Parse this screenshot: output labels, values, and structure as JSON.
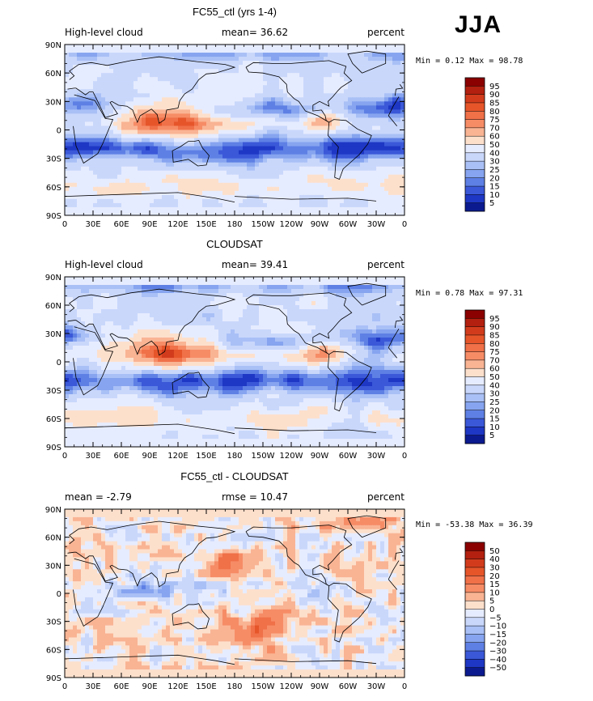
{
  "season_label": "JJA",
  "chart_data": [
    {
      "type": "heatmap",
      "title": "FC55_ctl (yrs 1-4)",
      "left_label": "High-level cloud",
      "center_label": "mean=  36.62",
      "right_label": "percent",
      "stats": "Min =   0.12 Max =  98.78",
      "min": 0.12,
      "max": 98.78,
      "mean": 36.62,
      "x_ticks": [
        "0",
        "30E",
        "60E",
        "90E",
        "120E",
        "150E",
        "180",
        "150W",
        "120W",
        "90W",
        "60W",
        "30W",
        "0"
      ],
      "y_ticks": [
        "90N",
        "60N",
        "30N",
        "0",
        "30S",
        "60S",
        "90S"
      ],
      "xlim": [
        0,
        360
      ],
      "ylim": [
        -90,
        90
      ],
      "colorbar_levels": [
        "95",
        "90",
        "85",
        "80",
        "75",
        "70",
        "60",
        "50",
        "40",
        "30",
        "25",
        "20",
        "15",
        "10",
        "5"
      ],
      "colorbar_colors": [
        "#8b0000",
        "#b3200f",
        "#d23c1c",
        "#e6552a",
        "#f07048",
        "#f68c66",
        "#f9b494",
        "#fde0cc",
        "#e6ecff",
        "#c9d7fb",
        "#a9c0f6",
        "#86a4ef",
        "#5e80e5",
        "#3a58d8",
        "#1e37c4",
        "#0b1a8f"
      ]
    },
    {
      "type": "heatmap",
      "title": "CLOUDSAT",
      "left_label": "High-level cloud",
      "center_label": "mean=  39.41",
      "right_label": "percent",
      "stats": "Min =   0.78 Max =  97.31",
      "min": 0.78,
      "max": 97.31,
      "mean": 39.41,
      "x_ticks": [
        "0",
        "30E",
        "60E",
        "90E",
        "120E",
        "150E",
        "180",
        "150W",
        "120W",
        "90W",
        "60W",
        "30W",
        "0"
      ],
      "y_ticks": [
        "90N",
        "60N",
        "30N",
        "0",
        "30S",
        "60S",
        "90S"
      ],
      "xlim": [
        0,
        360
      ],
      "ylim": [
        -90,
        90
      ],
      "colorbar_levels": [
        "95",
        "90",
        "85",
        "80",
        "75",
        "70",
        "60",
        "50",
        "40",
        "30",
        "25",
        "20",
        "15",
        "10",
        "5"
      ],
      "colorbar_colors": [
        "#8b0000",
        "#b3200f",
        "#d23c1c",
        "#e6552a",
        "#f07048",
        "#f68c66",
        "#f9b494",
        "#fde0cc",
        "#e6ecff",
        "#c9d7fb",
        "#a9c0f6",
        "#86a4ef",
        "#5e80e5",
        "#3a58d8",
        "#1e37c4",
        "#0b1a8f"
      ]
    },
    {
      "type": "heatmap",
      "title": "FC55_ctl - CLOUDSAT",
      "left_label": "mean =  -2.79",
      "center_label": "rmse =  10.47",
      "right_label": "percent",
      "stats": "Min = -53.38 Max =  36.39",
      "min": -53.38,
      "max": 36.39,
      "mean": -2.79,
      "rmse": 10.47,
      "x_ticks": [
        "0",
        "30E",
        "60E",
        "90E",
        "120E",
        "150E",
        "180",
        "150W",
        "120W",
        "90W",
        "60W",
        "30W",
        "0"
      ],
      "y_ticks": [
        "90N",
        "60N",
        "30N",
        "0",
        "30S",
        "60S",
        "90S"
      ],
      "xlim": [
        0,
        360
      ],
      "ylim": [
        -90,
        90
      ],
      "colorbar_levels": [
        "50",
        "40",
        "30",
        "20",
        "15",
        "10",
        "5",
        "0",
        "−5",
        "−10",
        "−15",
        "−20",
        "−30",
        "−40",
        "−50"
      ],
      "colorbar_colors": [
        "#8b0000",
        "#b3200f",
        "#d23c1c",
        "#e6552a",
        "#f07048",
        "#f68c66",
        "#f9b494",
        "#fde0cc",
        "#e6ecff",
        "#c9d7fb",
        "#a9c0f6",
        "#86a4ef",
        "#5e80e5",
        "#3a58d8",
        "#1e37c4",
        "#0b1a8f"
      ]
    }
  ]
}
